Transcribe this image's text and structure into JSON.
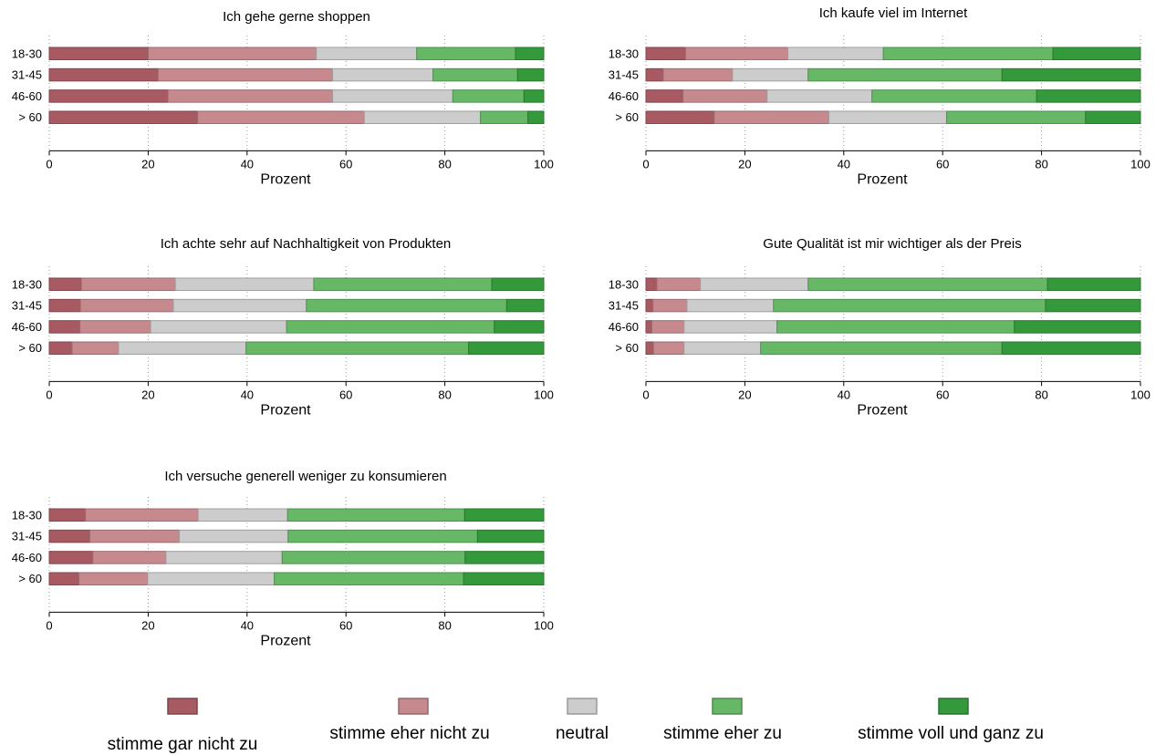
{
  "chart_data": {
    "type": "bar",
    "stacked": true,
    "orientation": "horizontal",
    "categories": [
      "18-30",
      "31-45",
      "46-60",
      "> 60"
    ],
    "xlabel": "Prozent",
    "xlim": [
      0,
      100
    ],
    "xticks": [
      0,
      20,
      40,
      60,
      80,
      100
    ],
    "xtick_labels": [
      "0",
      "20",
      "40",
      "60",
      "80",
      "100"
    ],
    "grid": "dotted vertical",
    "legend": {
      "placement": "bottom",
      "entries": [
        {
          "label": "stimme gar nicht zu",
          "color": "#a85a62"
        },
        {
          "label": "stimme eher nicht zu",
          "color": "#c68a8e"
        },
        {
          "label": "neutral",
          "color": "#cccccc"
        },
        {
          "label": "stimme eher zu",
          "color": "#66b866"
        },
        {
          "label": "stimme voll und ganz zu",
          "color": "#34993a"
        }
      ]
    },
    "panels": [
      {
        "title": "Ich gehe gerne shoppen",
        "series": [
          {
            "name": "stimme gar nicht zu",
            "values": [
              20,
              22,
              24,
              30
            ]
          },
          {
            "name": "stimme eher nicht zu",
            "values": [
              34,
              35.3,
              33.3,
              33.7
            ]
          },
          {
            "name": "neutral",
            "values": [
              20.3,
              20.3,
              24.3,
              23.5
            ]
          },
          {
            "name": "stimme eher zu",
            "values": [
              20,
              17.1,
              14.4,
              9.6
            ]
          },
          {
            "name": "stimme voll und ganz zu",
            "values": [
              5.7,
              5.3,
              4,
              3.2
            ]
          }
        ]
      },
      {
        "title": "Ich kaufe viel im Internet",
        "series": [
          {
            "name": "stimme gar nicht zu",
            "values": [
              8,
              3.5,
              7.5,
              13.8
            ]
          },
          {
            "name": "stimme eher nicht zu",
            "values": [
              20.7,
              14,
              17,
              23.2
            ]
          },
          {
            "name": "neutral",
            "values": [
              19.3,
              15.3,
              21.2,
              23.8
            ]
          },
          {
            "name": "stimme eher zu",
            "values": [
              34.3,
              39.2,
              33.3,
              28.1
            ]
          },
          {
            "name": "stimme voll und ganz zu",
            "values": [
              17.7,
              28,
              21,
              11.1
            ]
          }
        ]
      },
      {
        "title": "Ich achte sehr auf Nachhaltigkeit von Produkten",
        "series": [
          {
            "name": "stimme gar nicht zu",
            "values": [
              6.5,
              6.3,
              6.2,
              4.6
            ]
          },
          {
            "name": "stimme eher nicht zu",
            "values": [
              19,
              18.8,
              14.3,
              9.4
            ]
          },
          {
            "name": "neutral",
            "values": [
              28,
              26.9,
              27.5,
              25.8
            ]
          },
          {
            "name": "stimme eher zu",
            "values": [
              36,
              40.5,
              42,
              45
            ]
          },
          {
            "name": "stimme voll und ganz zu",
            "values": [
              10.5,
              7.5,
              10,
              15.2
            ]
          }
        ]
      },
      {
        "title": "Gute Qualität ist mir wichtiger als der Preis",
        "series": [
          {
            "name": "stimme gar nicht zu",
            "values": [
              2.2,
              1.4,
              1.2,
              1.5
            ]
          },
          {
            "name": "stimme eher nicht zu",
            "values": [
              8.8,
              6.9,
              6.5,
              6.2
            ]
          },
          {
            "name": "neutral",
            "values": [
              21.8,
              17.5,
              18.8,
              15.5
            ]
          },
          {
            "name": "stimme eher zu",
            "values": [
              48.4,
              55,
              48,
              48.8
            ]
          },
          {
            "name": "stimme voll und ganz zu",
            "values": [
              18.8,
              19.2,
              25.5,
              28
            ]
          }
        ]
      },
      {
        "title": "Ich versuche generell weniger zu konsumieren",
        "series": [
          {
            "name": "stimme gar nicht zu",
            "values": [
              7.3,
              8.2,
              8.8,
              6
            ]
          },
          {
            "name": "stimme eher nicht zu",
            "values": [
              22.8,
              18.1,
              14.8,
              13.9
            ]
          },
          {
            "name": "neutral",
            "values": [
              18.1,
              22,
              23.5,
              25.6
            ]
          },
          {
            "name": "stimme eher zu",
            "values": [
              35.8,
              38.3,
              37,
              38.3
            ]
          },
          {
            "name": "stimme voll und ganz zu",
            "values": [
              16,
              13.4,
              15.9,
              16.2
            ]
          }
        ]
      }
    ]
  }
}
